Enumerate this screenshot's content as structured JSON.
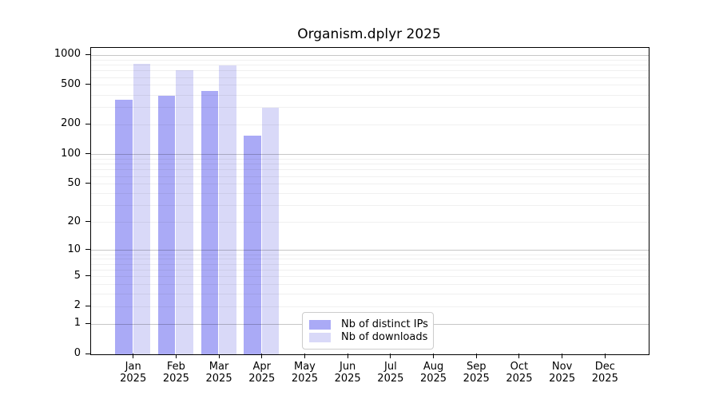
{
  "title": "Organism.dplyr 2025",
  "colors": {
    "bar_ips": "#aaaaf6",
    "bar_downloads": "#d9d9f8",
    "axis": "#000000",
    "grid_major": "rgba(0,0,0,0.22)",
    "grid_minor": "rgba(0,0,0,0.06)",
    "legend_border": "#cccccc",
    "text": "#000000"
  },
  "legend": {
    "items": [
      {
        "label": "Nb of distinct IPs",
        "color_key": "bar_ips"
      },
      {
        "label": "Nb of downloads",
        "color_key": "bar_downloads"
      }
    ]
  },
  "chart_data": {
    "type": "bar",
    "title": "Organism.dplyr 2025",
    "categories": [
      "Jan 2025",
      "Feb 2025",
      "Mar 2025",
      "Apr 2025",
      "May 2025",
      "Jun 2025",
      "Jul 2025",
      "Aug 2025",
      "Sep 2025",
      "Oct 2025",
      "Nov 2025",
      "Dec 2025"
    ],
    "series": [
      {
        "name": "Nb of distinct IPs",
        "color_key": "bar_ips",
        "values": [
          355,
          395,
          435,
          155,
          null,
          null,
          null,
          null,
          null,
          null,
          null,
          null
        ]
      },
      {
        "name": "Nb of downloads",
        "color_key": "bar_downloads",
        "values": [
          830,
          705,
          795,
          295,
          null,
          null,
          null,
          null,
          null,
          null,
          null,
          null
        ]
      }
    ],
    "y_ticks": [
      0,
      1,
      2,
      5,
      10,
      20,
      50,
      100,
      200,
      500,
      1000
    ],
    "y_scale": "log10(1+x)",
    "ylim": [
      0,
      1190
    ],
    "y_gridlines": {
      "major": [
        1,
        10,
        100,
        1000
      ],
      "minor": [
        2,
        3,
        4,
        5,
        6,
        7,
        8,
        9,
        20,
        30,
        40,
        50,
        60,
        70,
        80,
        90,
        200,
        300,
        400,
        500,
        600,
        700,
        800,
        900
      ]
    },
    "grid": "horizontal",
    "legend_position": "lower center inside"
  }
}
